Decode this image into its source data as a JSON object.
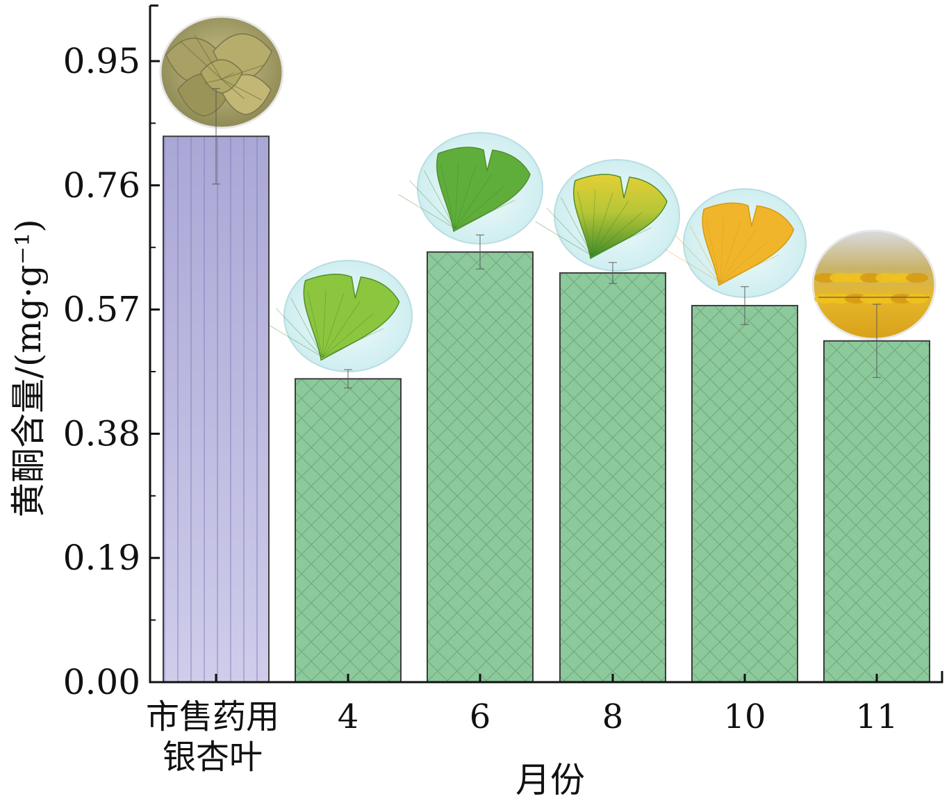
{
  "chart_data": {
    "type": "bar",
    "title": "",
    "xlabel": "月份",
    "ylabel": "黄酮含量/(mg·g⁻¹)",
    "ylim": [
      0,
      1.04
    ],
    "yticks": [
      "0.00",
      "0.19",
      "0.38",
      "0.57",
      "0.76",
      "0.95"
    ],
    "categories": [
      "市售药用银杏叶",
      "4",
      "6",
      "8",
      "10",
      "11"
    ],
    "category_label_lines": [
      [
        "市售药用",
        "银杏叶"
      ],
      [
        "4"
      ],
      [
        "6"
      ],
      [
        "8"
      ],
      [
        "10"
      ],
      [
        "11"
      ]
    ],
    "values": [
      0.835,
      0.464,
      0.658,
      0.626,
      0.576,
      0.522
    ],
    "errors": [
      0.073,
      0.014,
      0.026,
      0.016,
      0.029,
      0.056
    ],
    "bar_colors": [
      "#b7b4dc",
      "#8cc99b",
      "#8cc99b",
      "#8cc99b",
      "#8cc99b",
      "#8cc99b"
    ],
    "bar_patterns": [
      "vertical-lines",
      "crosshatch",
      "crosshatch",
      "crosshatch",
      "crosshatch",
      "crosshatch"
    ],
    "leaf_icons": [
      "dried-leaves-icon",
      "light-green-leaf-icon",
      "green-leaf-icon",
      "green-yellow-leaf-icon",
      "yellow-leaf-icon",
      "fallen-yellow-leaves-icon"
    ],
    "grid": false,
    "legend": "none"
  }
}
